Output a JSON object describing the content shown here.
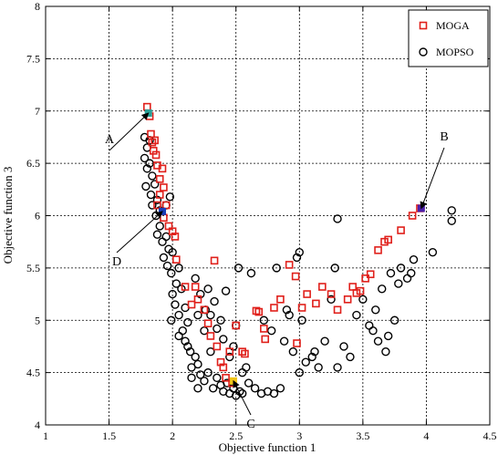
{
  "chart_data": {
    "type": "scatter",
    "title": "",
    "xlabel": "Objective function 1",
    "ylabel": "Objective function 3",
    "xlim": [
      1,
      4.5
    ],
    "ylim": [
      4,
      8
    ],
    "xticks": [
      "1",
      "1.5",
      "2",
      "2.5",
      "3",
      "3.5",
      "4",
      "4.5"
    ],
    "yticks": [
      "4",
      "4.5",
      "5",
      "5.5",
      "6",
      "6.5",
      "7",
      "7.5",
      "8"
    ],
    "grid": true,
    "legend_position": "top-right",
    "series": [
      {
        "name": "MOGA",
        "color": "#e0201b",
        "marker": "square",
        "points": [
          [
            1.8,
            7.04
          ],
          [
            1.82,
            6.95
          ],
          [
            1.83,
            6.78
          ],
          [
            1.84,
            6.7
          ],
          [
            1.85,
            6.62
          ],
          [
            1.86,
            6.72
          ],
          [
            1.87,
            6.58
          ],
          [
            1.88,
            6.48
          ],
          [
            1.9,
            6.35
          ],
          [
            1.92,
            6.45
          ],
          [
            1.9,
            6.2
          ],
          [
            1.93,
            6.27
          ],
          [
            1.88,
            6.1
          ],
          [
            1.95,
            6.1
          ],
          [
            1.97,
            5.9
          ],
          [
            2.0,
            5.85
          ],
          [
            2.02,
            5.8
          ],
          [
            2.03,
            5.58
          ],
          [
            1.93,
            5.98
          ],
          [
            2.1,
            5.32
          ],
          [
            2.18,
            5.32
          ],
          [
            2.33,
            5.57
          ],
          [
            2.2,
            5.2
          ],
          [
            2.25,
            5.1
          ],
          [
            2.28,
            4.97
          ],
          [
            2.3,
            4.85
          ],
          [
            2.35,
            4.75
          ],
          [
            2.38,
            4.6
          ],
          [
            2.42,
            4.45
          ],
          [
            2.47,
            4.4
          ],
          [
            2.45,
            4.7
          ],
          [
            2.5,
            4.95
          ],
          [
            2.55,
            4.7
          ],
          [
            2.57,
            4.68
          ],
          [
            2.66,
            5.09
          ],
          [
            2.68,
            5.08
          ],
          [
            2.72,
            4.92
          ],
          [
            2.73,
            4.82
          ],
          [
            2.8,
            5.12
          ],
          [
            2.85,
            5.2
          ],
          [
            2.92,
            5.53
          ],
          [
            2.97,
            5.42
          ],
          [
            3.02,
            5.12
          ],
          [
            3.06,
            5.25
          ],
          [
            3.13,
            5.16
          ],
          [
            3.18,
            5.32
          ],
          [
            3.25,
            5.25
          ],
          [
            3.3,
            5.1
          ],
          [
            3.38,
            5.2
          ],
          [
            3.42,
            5.32
          ],
          [
            3.45,
            5.26
          ],
          [
            3.52,
            5.4
          ],
          [
            3.56,
            5.44
          ],
          [
            3.62,
            5.67
          ],
          [
            3.67,
            5.75
          ],
          [
            3.7,
            5.77
          ],
          [
            3.8,
            5.86
          ],
          [
            3.89,
            6.0
          ],
          [
            3.95,
            6.07
          ],
          [
            2.15,
            5.15
          ],
          [
            2.4,
            4.55
          ],
          [
            3.48,
            5.28
          ],
          [
            2.98,
            4.78
          ]
        ]
      },
      {
        "name": "MOPSO",
        "color": "#000000",
        "marker": "circle",
        "points": [
          [
            1.78,
            6.75
          ],
          [
            1.8,
            6.65
          ],
          [
            1.82,
            6.72
          ],
          [
            1.78,
            6.55
          ],
          [
            1.8,
            6.45
          ],
          [
            1.82,
            6.5
          ],
          [
            1.84,
            6.38
          ],
          [
            1.79,
            6.28
          ],
          [
            1.83,
            6.2
          ],
          [
            1.86,
            6.3
          ],
          [
            1.84,
            6.1
          ],
          [
            1.88,
            6.15
          ],
          [
            1.87,
            6.0
          ],
          [
            1.9,
            6.05
          ],
          [
            1.9,
            5.9
          ],
          [
            1.92,
            5.75
          ],
          [
            1.95,
            5.8
          ],
          [
            1.97,
            5.68
          ],
          [
            1.93,
            5.6
          ],
          [
            1.96,
            5.52
          ],
          [
            1.99,
            5.45
          ],
          [
            2.0,
            5.65
          ],
          [
            2.03,
            5.35
          ],
          [
            2.0,
            5.25
          ],
          [
            2.02,
            5.15
          ],
          [
            2.05,
            5.05
          ],
          [
            2.07,
            5.3
          ],
          [
            2.1,
            5.12
          ],
          [
            2.12,
            4.98
          ],
          [
            2.05,
            4.85
          ],
          [
            2.1,
            4.8
          ],
          [
            2.14,
            4.7
          ],
          [
            2.18,
            4.65
          ],
          [
            2.15,
            4.55
          ],
          [
            2.2,
            4.58
          ],
          [
            2.22,
            4.48
          ],
          [
            2.25,
            4.42
          ],
          [
            2.28,
            4.5
          ],
          [
            2.32,
            4.35
          ],
          [
            2.35,
            4.45
          ],
          [
            2.38,
            4.38
          ],
          [
            2.4,
            4.32
          ],
          [
            2.43,
            4.4
          ],
          [
            2.45,
            4.3
          ],
          [
            2.48,
            4.35
          ],
          [
            2.5,
            4.28
          ],
          [
            2.53,
            4.32
          ],
          [
            2.55,
            4.5
          ],
          [
            2.18,
            5.4
          ],
          [
            2.22,
            5.25
          ],
          [
            2.26,
            5.1
          ],
          [
            2.28,
            5.3
          ],
          [
            2.3,
            5.05
          ],
          [
            2.33,
            5.18
          ],
          [
            2.35,
            4.92
          ],
          [
            2.38,
            5.0
          ],
          [
            2.4,
            4.82
          ],
          [
            2.42,
            5.28
          ],
          [
            2.45,
            4.65
          ],
          [
            2.48,
            4.75
          ],
          [
            2.5,
            4.95
          ],
          [
            2.52,
            5.5
          ],
          [
            2.58,
            4.55
          ],
          [
            2.62,
            5.45
          ],
          [
            2.65,
            4.35
          ],
          [
            2.7,
            4.3
          ],
          [
            2.75,
            4.32
          ],
          [
            2.8,
            4.3
          ],
          [
            2.85,
            4.35
          ],
          [
            2.72,
            5.0
          ],
          [
            2.78,
            4.9
          ],
          [
            2.82,
            5.5
          ],
          [
            2.88,
            4.8
          ],
          [
            2.92,
            5.05
          ],
          [
            2.95,
            4.7
          ],
          [
            2.98,
            5.6
          ],
          [
            3.0,
            5.65
          ],
          [
            3.0,
            4.5
          ],
          [
            3.02,
            5.0
          ],
          [
            3.05,
            4.6
          ],
          [
            3.1,
            4.65
          ],
          [
            3.15,
            4.55
          ],
          [
            3.2,
            4.8
          ],
          [
            3.28,
            5.5
          ],
          [
            3.3,
            5.97
          ],
          [
            3.3,
            4.55
          ],
          [
            3.35,
            4.75
          ],
          [
            3.4,
            4.65
          ],
          [
            3.45,
            5.05
          ],
          [
            3.5,
            5.2
          ],
          [
            3.55,
            4.95
          ],
          [
            3.6,
            5.1
          ],
          [
            3.62,
            4.8
          ],
          [
            3.65,
            5.3
          ],
          [
            3.68,
            4.7
          ],
          [
            3.7,
            4.85
          ],
          [
            3.72,
            5.45
          ],
          [
            3.75,
            5.0
          ],
          [
            3.78,
            5.35
          ],
          [
            3.8,
            5.5
          ],
          [
            3.85,
            5.4
          ],
          [
            3.88,
            5.45
          ],
          [
            3.9,
            5.58
          ],
          [
            4.05,
            5.65
          ],
          [
            4.2,
            6.05
          ],
          [
            4.2,
            5.95
          ],
          [
            2.55,
            4.3
          ],
          [
            2.6,
            4.4
          ],
          [
            2.3,
            4.7
          ],
          [
            2.25,
            4.9
          ],
          [
            2.2,
            5.05
          ],
          [
            1.99,
            5.0
          ],
          [
            2.08,
            4.9
          ],
          [
            2.12,
            4.75
          ],
          [
            3.25,
            5.2
          ],
          [
            3.58,
            4.9
          ],
          [
            2.9,
            5.1
          ],
          [
            3.12,
            4.7
          ],
          [
            1.95,
            6.1
          ],
          [
            1.98,
            6.18
          ],
          [
            1.88,
            5.82
          ],
          [
            2.05,
            5.5
          ],
          [
            2.15,
            4.45
          ],
          [
            2.2,
            4.35
          ]
        ]
      }
    ],
    "highlights": [
      {
        "label": "A",
        "x": 1.81,
        "y": 6.98,
        "color": "#2aa198"
      },
      {
        "label": "B",
        "x": 3.96,
        "y": 6.07,
        "color": "#4b1fa8"
      },
      {
        "label": "C",
        "x": 2.48,
        "y": 4.42,
        "color": "#f0c419"
      },
      {
        "label": "D",
        "x": 1.92,
        "y": 6.04,
        "color": "#1a3fb8"
      }
    ]
  }
}
